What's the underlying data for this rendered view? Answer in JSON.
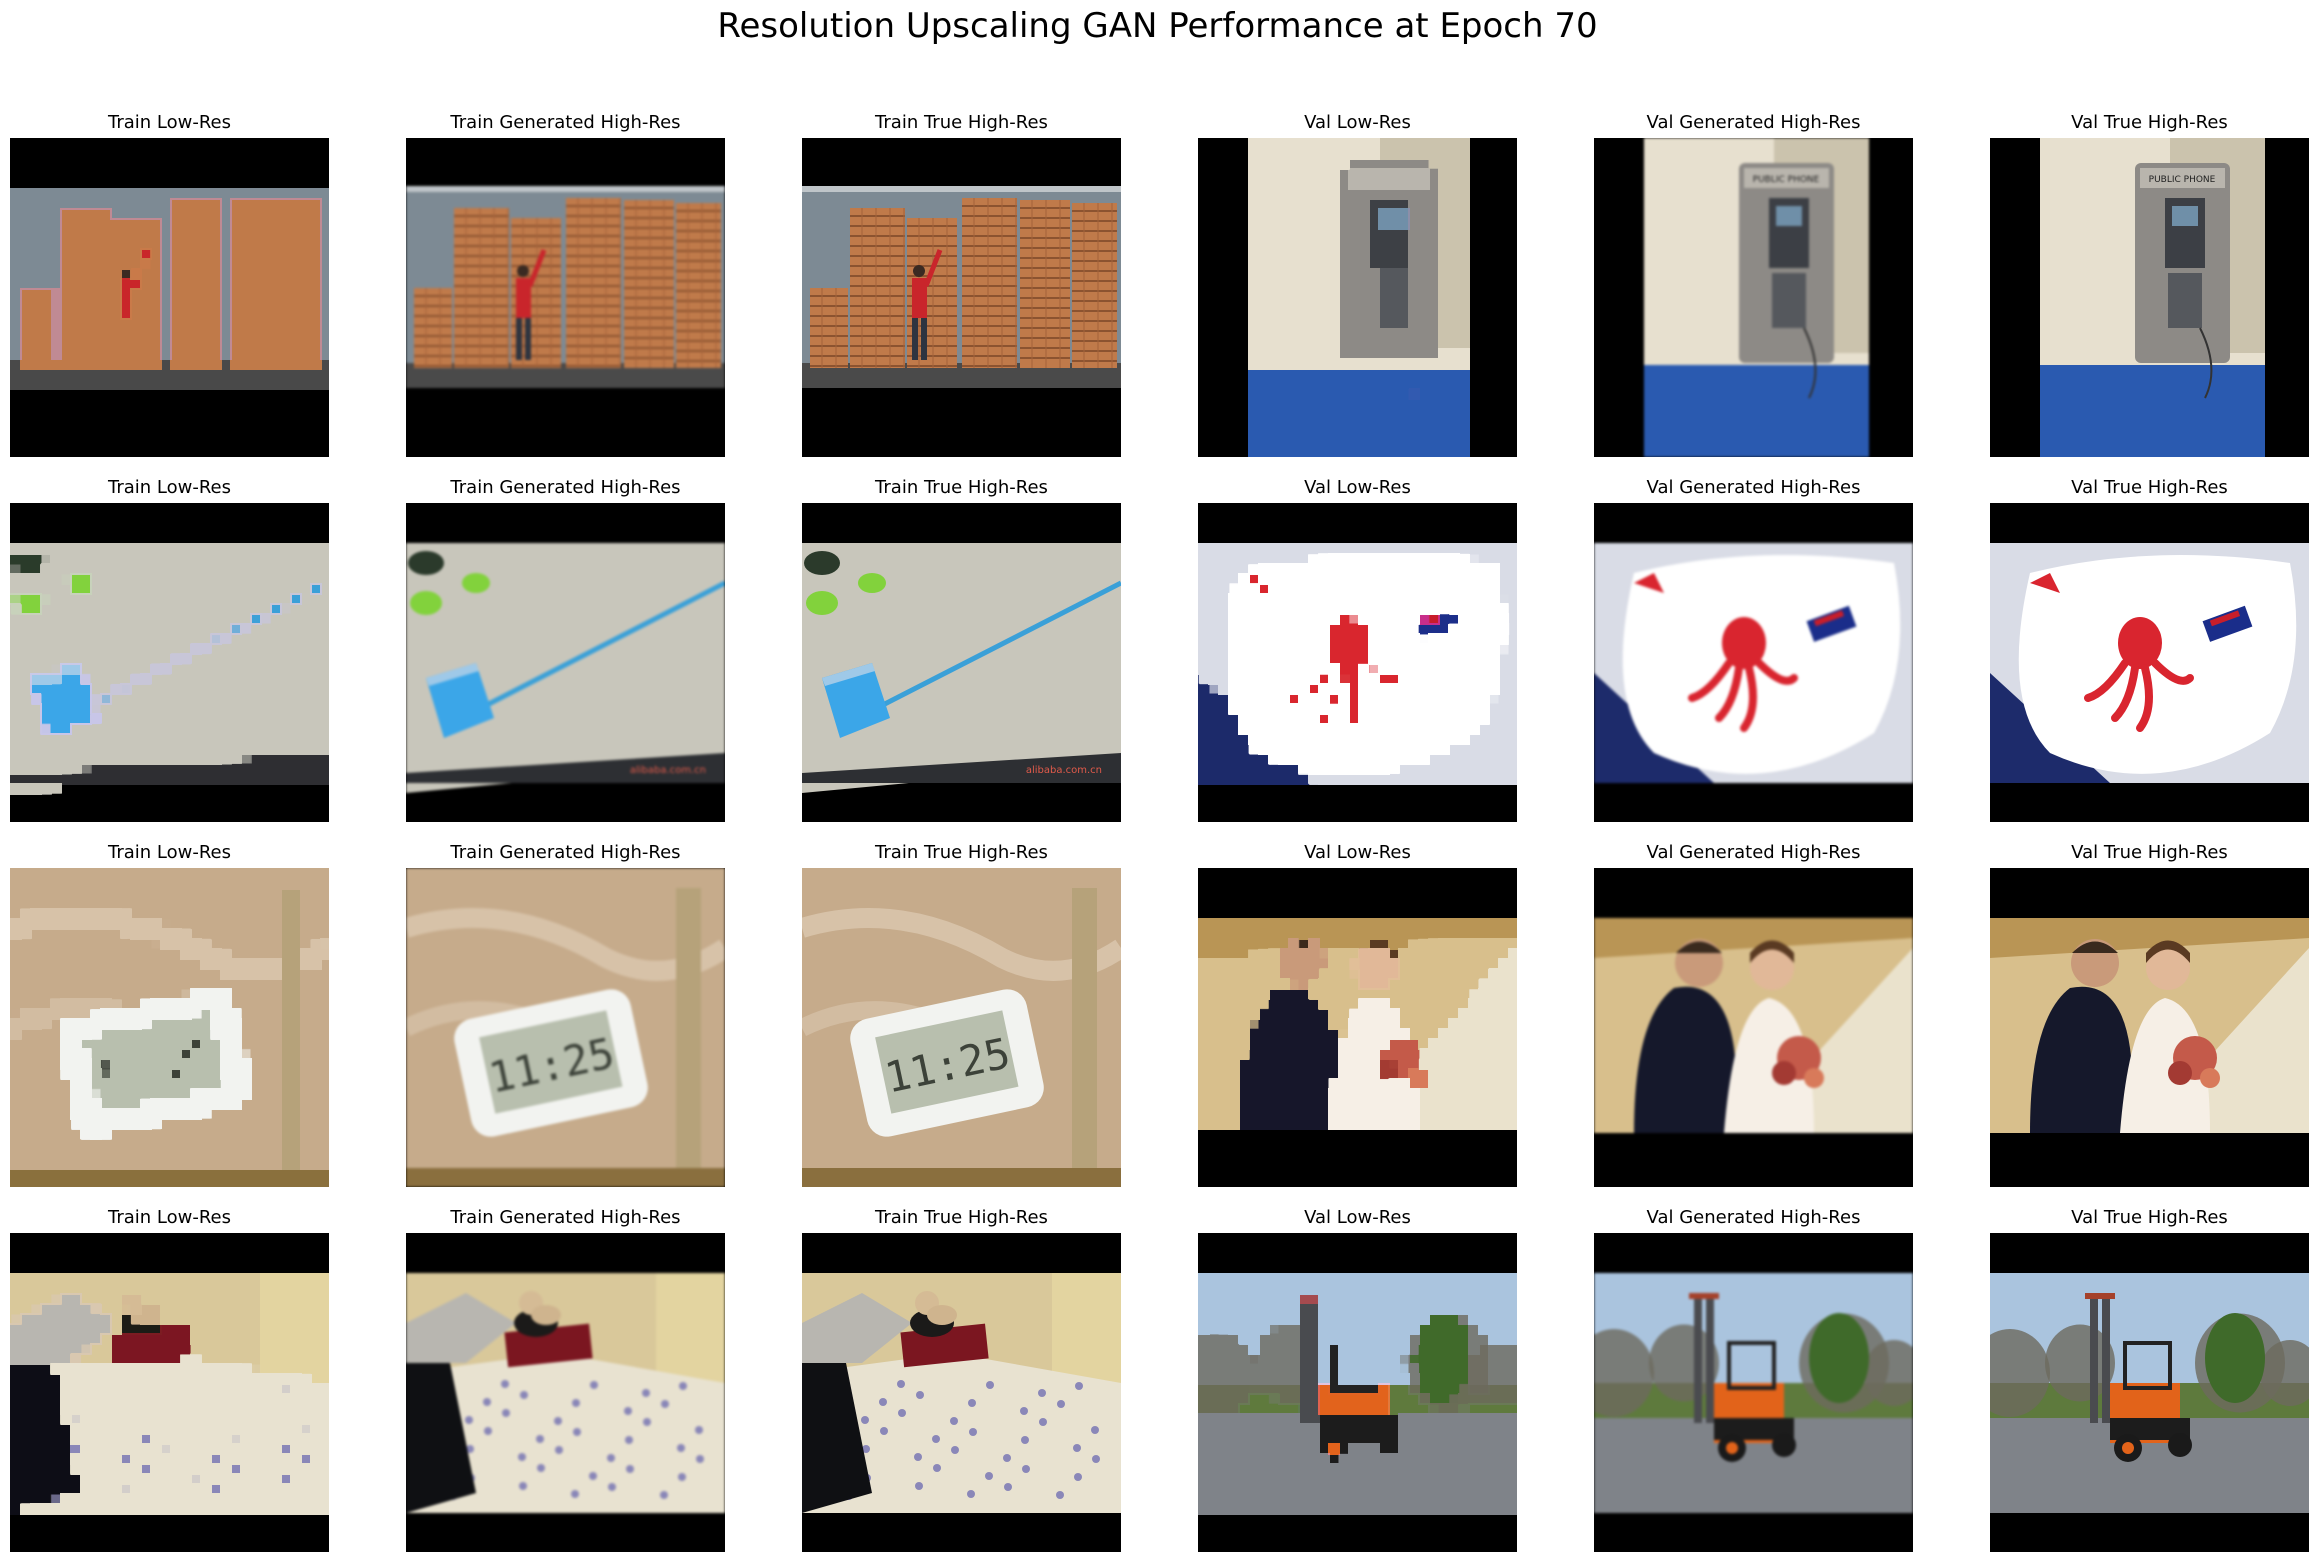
{
  "figure": {
    "title": "Resolution Upscaling GAN Performance at Epoch 70"
  },
  "columns": [
    {
      "key": "train_low",
      "label": "Train Low-Res",
      "quality": "low"
    },
    {
      "key": "train_gen",
      "label": "Train Generated High-Res",
      "quality": "gen"
    },
    {
      "key": "train_true",
      "label": "Train True High-Res",
      "quality": "true"
    },
    {
      "key": "val_low",
      "label": "Val Low-Res",
      "quality": "low"
    },
    {
      "key": "val_gen",
      "label": "Val Generated High-Res",
      "quality": "gen"
    },
    {
      "key": "val_true",
      "label": "Val True High-Res",
      "quality": "true"
    }
  ],
  "rows": [
    {
      "train_scene": "lumber-stacks",
      "val_scene": "payphone"
    },
    {
      "train_scene": "broom",
      "val_scene": "baby-bib"
    },
    {
      "train_scene": "digital-clock",
      "val_scene": "wedding-couple"
    },
    {
      "train_scene": "bed-with-teddy",
      "val_scene": "forklift"
    }
  ],
  "image_text": {
    "payphone_sign": "PUBLIC PHONE",
    "broom_watermark": "alibaba.com.cn",
    "clock_time": "11:25"
  }
}
